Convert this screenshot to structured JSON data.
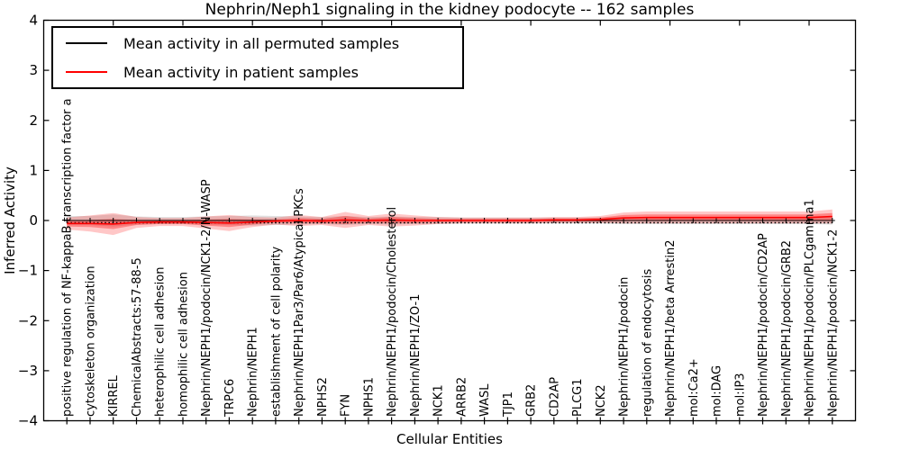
{
  "figure": {
    "title": "Nephrin/Neph1 signaling in the kidney podocyte -- 162 samples",
    "xlabel": "Cellular Entities",
    "ylabel": "Inferred Activity"
  },
  "legend": {
    "entries": [
      {
        "label": "Mean activity in all permuted samples",
        "color": "#000000"
      },
      {
        "label": "Mean activity in patient samples",
        "color": "#ff0000"
      }
    ]
  },
  "colors": {
    "patient_line": "#ff0000",
    "permuted_line": "#000000",
    "patient_band": "#ff0000",
    "permuted_band": "#bbbbbb",
    "frame": "#000000",
    "background": "#ffffff"
  },
  "chart_data": {
    "type": "line",
    "title": "Nephrin/Neph1 signaling in the kidney podocyte -- 162 samples",
    "xlabel": "Cellular Entities",
    "ylabel": "Inferred Activity",
    "ylim": [
      -4,
      4
    ],
    "ytick_labels": [
      "4",
      "3",
      "2",
      "1",
      "0",
      "−1",
      "−2",
      "−3",
      "−4"
    ],
    "ytick_values": [
      4,
      3,
      2,
      1,
      0,
      -1,
      -2,
      -3,
      -4
    ],
    "grid": false,
    "legend_position": "upper left",
    "zero_line": {
      "value": 0,
      "style": "dotted",
      "color": "#000000"
    },
    "categories": [
      "positive regulation of NF-kappaB transcription factor a",
      "cytoskeleton organization",
      "KIRREL",
      "ChemicalAbstracts:57-88-5",
      "heterophilic cell adhesion",
      "homophilic cell adhesion",
      "Nephrin/NEPH1/podocin/NCK1-2/N-WASP",
      "TRPC6",
      "Nephrin/NEPH1",
      "establishment of cell polarity",
      "Nephrin/NEPH1Par3/Par6/Atypical PKCs",
      "NPHS2",
      "FYN",
      "NPHS1",
      "Nephrin/NEPH1/podocin/Cholesterol",
      "Nephrin/NEPH1/ZO-1",
      "NCK1",
      "ARRB2",
      "WASL",
      "TJP1",
      "GRB2",
      "CD2AP",
      "PLCG1",
      "NCK2",
      "Nephrin/NEPH1/podocin",
      "regulation of endocytosis",
      "Nephrin/NEPH1/beta Arrestin2",
      "mol:Ca2+",
      "mol:DAG",
      "mol:IP3",
      "Nephrin/NEPH1/podocin/CD2AP",
      "Nephrin/NEPH1/podocin/GRB2",
      "Nephrin/NEPH1/podocin/PLCgamma1",
      "Nephrin/NEPH1/podocin/NCK1-2"
    ],
    "series": [
      {
        "name": "Mean activity in all permuted samples",
        "color": "#000000",
        "style": "solid",
        "marker": "plus",
        "values": [
          0,
          0,
          0,
          0,
          0,
          0,
          0,
          0,
          0,
          0,
          0,
          0,
          0,
          0,
          0,
          0,
          0,
          0,
          0,
          0,
          0,
          0,
          0,
          0,
          0,
          0,
          0,
          0,
          0,
          0,
          0,
          0,
          0,
          0
        ],
        "band_half_width": [
          0.09,
          0.09,
          0.12,
          0.08,
          0.07,
          0.07,
          0.08,
          0.09,
          0.1,
          0.09,
          0.08,
          0.07,
          0.09,
          0.07,
          0.08,
          0.07,
          0.07,
          0.06,
          0.06,
          0.06,
          0.06,
          0.06,
          0.06,
          0.06,
          0.07,
          0.07,
          0.07,
          0.07,
          0.07,
          0.07,
          0.07,
          0.07,
          0.07,
          0.08
        ]
      },
      {
        "name": "Mean activity in patient samples",
        "color": "#ff0000",
        "style": "solid",
        "marker": "none",
        "values": [
          -0.06,
          -0.06,
          -0.07,
          -0.04,
          -0.03,
          -0.03,
          -0.04,
          -0.05,
          -0.03,
          -0.01,
          0.0,
          -0.01,
          0.01,
          0.0,
          0.01,
          0.0,
          0.0,
          0.0,
          0.0,
          0.0,
          0.0,
          0.01,
          0.01,
          0.02,
          0.05,
          0.06,
          0.06,
          0.06,
          0.06,
          0.06,
          0.06,
          0.06,
          0.06,
          0.08
        ],
        "band_outer_half_width": [
          0.12,
          0.16,
          0.22,
          0.11,
          0.08,
          0.08,
          0.12,
          0.16,
          0.1,
          0.07,
          0.11,
          0.08,
          0.16,
          0.09,
          0.13,
          0.1,
          0.07,
          0.06,
          0.06,
          0.06,
          0.06,
          0.06,
          0.06,
          0.07,
          0.11,
          0.12,
          0.12,
          0.12,
          0.12,
          0.12,
          0.12,
          0.12,
          0.12,
          0.14
        ],
        "band_inner_half_width": [
          0.06,
          0.07,
          0.1,
          0.05,
          0.04,
          0.04,
          0.06,
          0.08,
          0.05,
          0.03,
          0.05,
          0.04,
          0.08,
          0.04,
          0.06,
          0.05,
          0.03,
          0.03,
          0.03,
          0.03,
          0.03,
          0.03,
          0.03,
          0.04,
          0.06,
          0.06,
          0.06,
          0.06,
          0.06,
          0.06,
          0.06,
          0.06,
          0.06,
          0.07
        ]
      }
    ]
  }
}
